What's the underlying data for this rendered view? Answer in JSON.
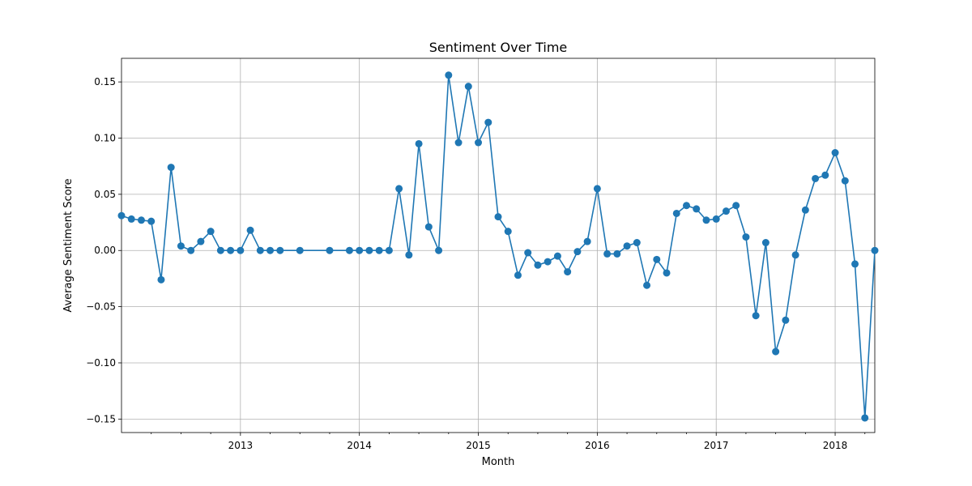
{
  "chart_data": {
    "type": "line",
    "title": "Sentiment Over Time",
    "xlabel": "Month",
    "ylabel": "Average Sentiment Score",
    "x_range": [
      "2012-01",
      "2018-05"
    ],
    "ylim": [
      -0.162,
      0.171
    ],
    "y_ticks": [
      -0.15,
      -0.1,
      -0.05,
      0.0,
      0.05,
      0.1,
      0.15
    ],
    "y_tick_labels": [
      "−0.15",
      "−0.10",
      "−0.05",
      "0.00",
      "0.05",
      "0.10",
      "0.15"
    ],
    "x_ticks": [
      "2013-01",
      "2014-01",
      "2015-01",
      "2016-01",
      "2017-01",
      "2018-01"
    ],
    "x_tick_labels": [
      "2013",
      "2014",
      "2015",
      "2016",
      "2017",
      "2018"
    ],
    "grid": true,
    "marker": "circle",
    "color": "#1f77b4",
    "series": [
      {
        "x": [
          "2012-01",
          "2012-02",
          "2012-03",
          "2012-04",
          "2012-05",
          "2012-06",
          "2012-07",
          "2012-08",
          "2012-09",
          "2012-10",
          "2012-11",
          "2012-12",
          "2013-01",
          "2013-02",
          "2013-03",
          "2013-04",
          "2013-05",
          "2013-07",
          "2013-10",
          "2013-12",
          "2014-01",
          "2014-02",
          "2014-03",
          "2014-04",
          "2014-05",
          "2014-06",
          "2014-07",
          "2014-08",
          "2014-09",
          "2014-10",
          "2014-11",
          "2014-12",
          "2015-01",
          "2015-02",
          "2015-03",
          "2015-04",
          "2015-05",
          "2015-06",
          "2015-07",
          "2015-08",
          "2015-09",
          "2015-10",
          "2015-11",
          "2015-12",
          "2016-01",
          "2016-02",
          "2016-03",
          "2016-04",
          "2016-05",
          "2016-06",
          "2016-07",
          "2016-08",
          "2016-09",
          "2016-10",
          "2016-11",
          "2016-12",
          "2017-01",
          "2017-02",
          "2017-03",
          "2017-04",
          "2017-05",
          "2017-06",
          "2017-07",
          "2017-08",
          "2017-09",
          "2017-10",
          "2017-11",
          "2017-12",
          "2018-01",
          "2018-02",
          "2018-03",
          "2018-04",
          "2018-05"
        ],
        "y": [
          0.031,
          0.028,
          0.027,
          0.026,
          -0.026,
          0.074,
          0.004,
          0.0,
          0.008,
          0.017,
          0.0,
          0.0,
          0.0,
          0.018,
          0.0,
          0.0,
          0.0,
          0.0,
          0.0,
          0.0,
          0.0,
          0.0,
          0.0,
          0.0,
          0.055,
          -0.004,
          0.095,
          0.021,
          0.0,
          0.156,
          0.096,
          0.146,
          0.096,
          0.114,
          0.03,
          0.017,
          -0.022,
          -0.002,
          -0.013,
          -0.01,
          -0.005,
          -0.019,
          -0.001,
          0.008,
          0.055,
          -0.003,
          -0.003,
          0.004,
          0.007,
          -0.031,
          -0.008,
          -0.02,
          0.033,
          0.04,
          0.037,
          0.027,
          0.028,
          0.035,
          0.04,
          0.012,
          -0.058,
          0.007,
          -0.09,
          -0.062,
          -0.004,
          0.036,
          0.064,
          0.067,
          0.087,
          0.062,
          -0.012,
          -0.149,
          0.0
        ]
      }
    ]
  }
}
